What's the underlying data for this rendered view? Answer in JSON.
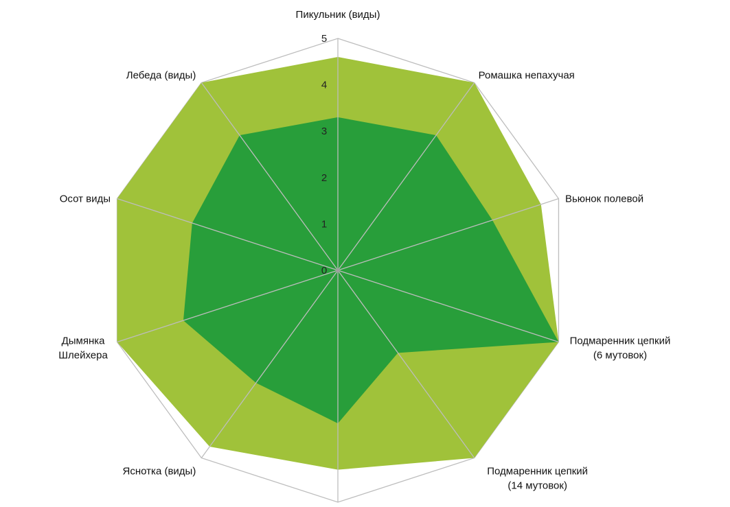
{
  "chart_data": {
    "type": "radar",
    "title": "",
    "categories": [
      [
        "Пикульник (виды)"
      ],
      [
        "Ромашка непахучая"
      ],
      [
        "Вьюнок полевой"
      ],
      [
        "Подмаренник цепкий",
        "(6 мутовок)"
      ],
      [
        "Подмаренник цепкий",
        "(14 мутовок)"
      ],
      [],
      [
        "Яснотка (виды)"
      ],
      [
        "Дымянка",
        "Шлейхера"
      ],
      [
        "Осот виды"
      ],
      [
        "Лебеда (виды)"
      ]
    ],
    "rlim": [
      0,
      5
    ],
    "ticks": [
      "0",
      "1",
      "2",
      "3",
      "4",
      "5"
    ],
    "grid": true,
    "series": [
      {
        "values": [
          4.6,
          5.0,
          4.6,
          5.0,
          5.0,
          4.3,
          4.7,
          5.0,
          5.0,
          5.0
        ],
        "color": "#a0c23a"
      },
      {
        "values": [
          3.3,
          3.6,
          3.5,
          5.0,
          2.2,
          3.3,
          3.0,
          3.5,
          3.3,
          3.6
        ],
        "color": "#289e3a"
      }
    ],
    "gridline_color": "#bdbdbd"
  }
}
